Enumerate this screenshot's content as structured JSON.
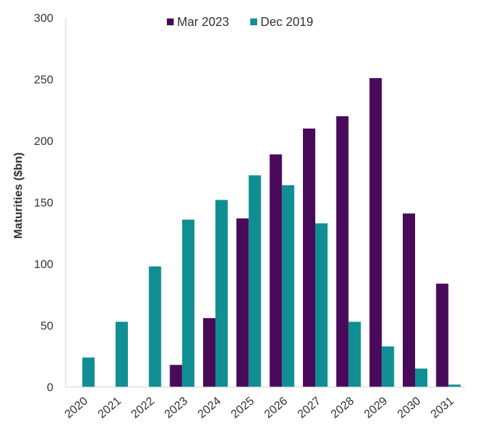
{
  "chart_data": {
    "type": "bar",
    "categories": [
      "2020",
      "2021",
      "2022",
      "2023",
      "2024",
      "2025",
      "2026",
      "2027",
      "2028",
      "2029",
      "2030",
      "2031"
    ],
    "series": [
      {
        "name": "Mar 2023",
        "color": "#4a0a5a",
        "values": [
          0,
          0,
          0,
          18,
          56,
          137,
          189,
          210,
          220,
          251,
          141,
          84
        ]
      },
      {
        "name": "Dec 2019",
        "color": "#0f8f93",
        "values": [
          24,
          53,
          98,
          136,
          152,
          172,
          164,
          133,
          53,
          33,
          15,
          2
        ]
      }
    ],
    "title": "",
    "xlabel": "",
    "ylabel": "Maturities ($bn)",
    "ylim": [
      0,
      300
    ],
    "yticks": [
      0,
      50,
      100,
      150,
      200,
      250,
      300
    ],
    "grid": false,
    "legend_position": "top-center"
  }
}
